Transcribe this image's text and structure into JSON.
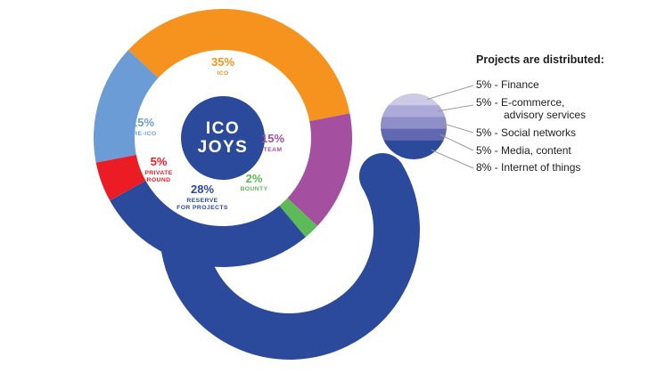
{
  "colors": {
    "primary_blue": "#2B4A9C",
    "background": "#FFFFFF",
    "leader_line": "#9B9B9B"
  },
  "chart_data": [
    {
      "type": "pie",
      "variant": "donut",
      "center_label": [
        "ICO",
        "JOYS"
      ],
      "segments": [
        {
          "label": "ICO",
          "label_lines": [
            "ICO"
          ],
          "value": 35,
          "percent_text": "35%",
          "color": "#F6921E"
        },
        {
          "label": "TEAM",
          "label_lines": [
            "TEAM"
          ],
          "value": 15,
          "percent_text": "15%",
          "color": "#A44F9F"
        },
        {
          "label": "BOUNTY",
          "label_lines": [
            "BOUNTY"
          ],
          "value": 2,
          "percent_text": "2%",
          "color": "#5CBA57"
        },
        {
          "label": "RESERVE FOR PROJECTS",
          "label_lines": [
            "RESERVE",
            "FOR PROJECTS"
          ],
          "value": 28,
          "percent_text": "28%",
          "color": "#2B4A9C"
        },
        {
          "label": "PRIVATE ROUND",
          "label_lines": [
            "PRIVATE",
            "ROUND"
          ],
          "value": 5,
          "percent_text": "5%",
          "color": "#EC1C24"
        },
        {
          "label": "PRE-ICO",
          "label_lines": [
            "PRE-ICO"
          ],
          "value": 15,
          "percent_text": "15%",
          "color": "#6C9CD6"
        }
      ]
    },
    {
      "type": "pie",
      "variant": "banded-circle",
      "heading": "Projects are distributed:",
      "items": [
        {
          "value": 5,
          "text": "5% - Finance",
          "color": "#CDCAE8"
        },
        {
          "value": 5,
          "text": "5% - E-commerce,\nadvisory services",
          "color": "#ADAAD9"
        },
        {
          "value": 5,
          "text": "5% - Social networks",
          "color": "#8E8EC9"
        },
        {
          "value": 5,
          "text": "5% - Media, content",
          "color": "#6168B0"
        },
        {
          "value": 8,
          "text": "8% - Internet of things",
          "color": "#2B4A9C"
        }
      ]
    }
  ]
}
